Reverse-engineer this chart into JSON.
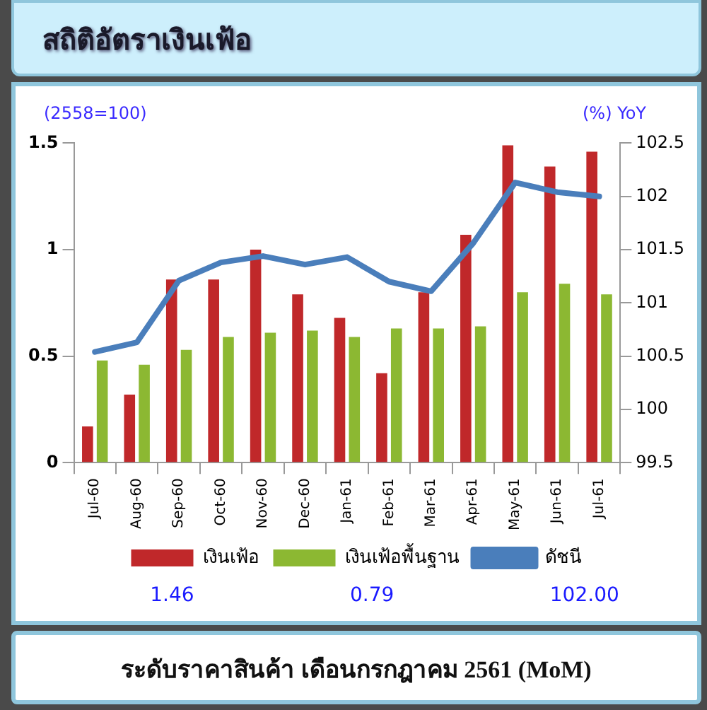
{
  "chart_data": {
    "type": "bar",
    "title": "สถิติอัตราเงินเฟ้อ",
    "subtitle": "ระดับราคาสินค้า เดือนกรกฎาคม 2561 (MoM)",
    "ylabel": "(2558=100)",
    "y2label": "(%) YoY",
    "categories": [
      "Jul-60",
      "Aug-60",
      "Sep-60",
      "Oct-60",
      "Nov-60",
      "Dec-60",
      "Jan-61",
      "Feb-61",
      "Mar-61",
      "Apr-61",
      "May-61",
      "Jun-61",
      "Jul-61"
    ],
    "series": [
      {
        "name": "เงินเฟ้อ",
        "color": "#c0282a",
        "values": [
          0.17,
          0.32,
          0.86,
          0.86,
          1.0,
          0.79,
          0.68,
          0.42,
          0.8,
          1.07,
          1.49,
          1.39,
          1.46
        ]
      },
      {
        "name": "เงินเฟ้อพื้นฐาน",
        "color": "#8cb832",
        "values": [
          0.48,
          0.46,
          0.53,
          0.59,
          0.61,
          0.62,
          0.59,
          0.63,
          0.63,
          0.64,
          0.8,
          0.84,
          0.79
        ]
      },
      {
        "name": "ดัชนี",
        "type": "line",
        "axis": "y2",
        "color": "#4a7ebb",
        "values": [
          100.54,
          100.63,
          101.21,
          101.38,
          101.44,
          101.36,
          101.43,
          101.2,
          101.11,
          101.56,
          102.13,
          102.04,
          102.0
        ]
      }
    ],
    "ylim": [
      0,
      1.5
    ],
    "yticks": [
      0,
      0.5,
      1,
      1.5
    ],
    "y2lim": [
      99.5,
      102.5
    ],
    "y2ticks": [
      99.5,
      100,
      100.5,
      101,
      101.5,
      102,
      102.5
    ],
    "legend": "bottom",
    "grid": false,
    "marker": "none",
    "annotations": [
      "1.46",
      "0.79",
      "102.00"
    ]
  }
}
